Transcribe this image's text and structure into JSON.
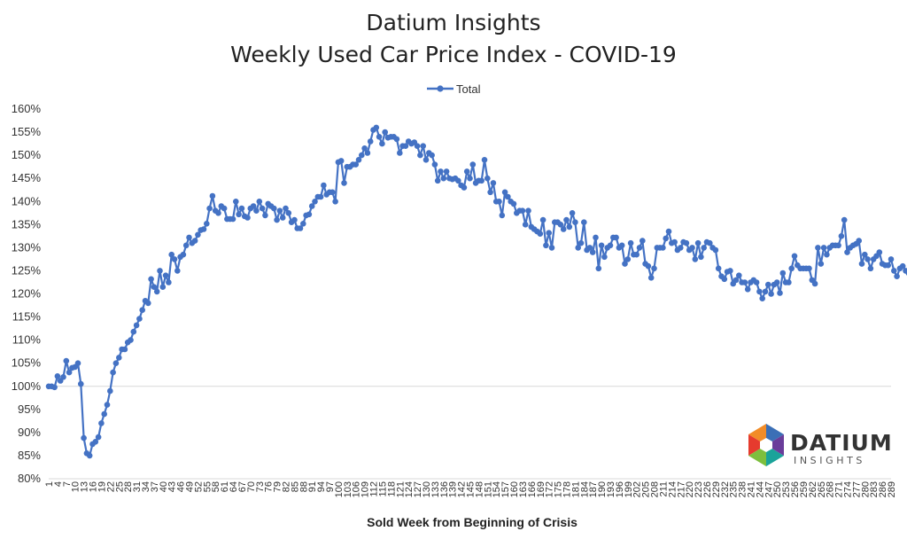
{
  "chart_data": {
    "type": "line",
    "title": [
      "Datium Insights",
      "Weekly Used Car Price Index - COVID-19"
    ],
    "xlabel": "Sold Week from Beginning of Crisis",
    "ylabel": "",
    "ylim": [
      0.8,
      1.6
    ],
    "y_ticks": [
      "80%",
      "85%",
      "90%",
      "95%",
      "100%",
      "105%",
      "110%",
      "115%",
      "120%",
      "125%",
      "130%",
      "135%",
      "140%",
      "145%",
      "150%",
      "155%",
      "160%"
    ],
    "x_range": [
      1,
      289
    ],
    "x_tick_labels": [
      "1",
      "4",
      "7",
      "10",
      "13",
      "16",
      "19",
      "22",
      "25",
      "28",
      "31",
      "34",
      "37",
      "40",
      "43",
      "46",
      "49",
      "52",
      "55",
      "58",
      "61",
      "64",
      "67",
      "70",
      "73",
      "76",
      "79",
      "82",
      "85",
      "88",
      "91",
      "94",
      "97",
      "100",
      "103",
      "106",
      "109",
      "112",
      "115",
      "118",
      "121",
      "124",
      "127",
      "130",
      "133",
      "136",
      "139",
      "142",
      "145",
      "148",
      "151",
      "154",
      "157",
      "160",
      "163",
      "166",
      "169",
      "172",
      "175",
      "178",
      "181",
      "184",
      "187",
      "190",
      "193",
      "196",
      "199",
      "202",
      "205",
      "208",
      "211",
      "214",
      "217",
      "220",
      "223",
      "226",
      "229",
      "232",
      "235",
      "238",
      "241",
      "244",
      "247",
      "250",
      "253",
      "256",
      "259",
      "262",
      "265",
      "268",
      "271",
      "274",
      "277",
      "280",
      "283",
      "286",
      "289"
    ],
    "reference_line": {
      "y": 1.0,
      "label": ""
    },
    "legend": {
      "position": "top-center"
    },
    "series": [
      {
        "name": "Total",
        "color": "#4472C4",
        "y": [
          1.0,
          1.0,
          0.998,
          1.022,
          1.012,
          1.02,
          1.055,
          1.03,
          1.04,
          1.042,
          1.05,
          1.005,
          0.888,
          0.855,
          0.85,
          0.875,
          0.88,
          0.89,
          0.92,
          0.94,
          0.96,
          0.99,
          1.03,
          1.05,
          1.062,
          1.08,
          1.08,
          1.095,
          1.1,
          1.118,
          1.132,
          1.146,
          1.165,
          1.185,
          1.18,
          1.232,
          1.215,
          1.205,
          1.25,
          1.215,
          1.24,
          1.225,
          1.285,
          1.275,
          1.25,
          1.28,
          1.285,
          1.305,
          1.322,
          1.31,
          1.315,
          1.328,
          1.338,
          1.34,
          1.352,
          1.385,
          1.412,
          1.38,
          1.375,
          1.39,
          1.385,
          1.362,
          1.362,
          1.362,
          1.4,
          1.372,
          1.385,
          1.368,
          1.365,
          1.385,
          1.39,
          1.38,
          1.4,
          1.385,
          1.37,
          1.395,
          1.39,
          1.385,
          1.36,
          1.38,
          1.365,
          1.385,
          1.375,
          1.355,
          1.36,
          1.342,
          1.342,
          1.352,
          1.37,
          1.372,
          1.39,
          1.4,
          1.41,
          1.41,
          1.435,
          1.415,
          1.42,
          1.42,
          1.4,
          1.485,
          1.488,
          1.44,
          1.475,
          1.475,
          1.48,
          1.48,
          1.49,
          1.5,
          1.515,
          1.505,
          1.53,
          1.555,
          1.56,
          1.54,
          1.525,
          1.55,
          1.538,
          1.54,
          1.54,
          1.535,
          1.505,
          1.52,
          1.52,
          1.53,
          1.525,
          1.528,
          1.52,
          1.5,
          1.52,
          1.49,
          1.505,
          1.5,
          1.48,
          1.445,
          1.465,
          1.45,
          1.465,
          1.45,
          1.448,
          1.45,
          1.445,
          1.435,
          1.43,
          1.465,
          1.45,
          1.48,
          1.44,
          1.445,
          1.445,
          1.49,
          1.45,
          1.42,
          1.44,
          1.4,
          1.4,
          1.37,
          1.42,
          1.41,
          1.4,
          1.395,
          1.375,
          1.38,
          1.38,
          1.35,
          1.38,
          1.345,
          1.34,
          1.335,
          1.33,
          1.36,
          1.305,
          1.332,
          1.3,
          1.355,
          1.355,
          1.35,
          1.34,
          1.36,
          1.345,
          1.375,
          1.355,
          1.3,
          1.31,
          1.355,
          1.295,
          1.3,
          1.29,
          1.322,
          1.255,
          1.305,
          1.28,
          1.3,
          1.305,
          1.322,
          1.322,
          1.3,
          1.305,
          1.265,
          1.275,
          1.31,
          1.285,
          1.285,
          1.3,
          1.315,
          1.265,
          1.26,
          1.235,
          1.255,
          1.3,
          1.3,
          1.3,
          1.32,
          1.335,
          1.31,
          1.312,
          1.295,
          1.3,
          1.312,
          1.31,
          1.295,
          1.3,
          1.275,
          1.31,
          1.28,
          1.3,
          1.312,
          1.31,
          1.3,
          1.295,
          1.255,
          1.238,
          1.232,
          1.248,
          1.25,
          1.222,
          1.23,
          1.24,
          1.225,
          1.225,
          1.21,
          1.225,
          1.23,
          1.225,
          1.205,
          1.19,
          1.205,
          1.22,
          1.2,
          1.22,
          1.225,
          1.202,
          1.245,
          1.225,
          1.225,
          1.255,
          1.282,
          1.262,
          1.255,
          1.255,
          1.255,
          1.255,
          1.23,
          1.222,
          1.3,
          1.265,
          1.3,
          1.285,
          1.3,
          1.305,
          1.305,
          1.305,
          1.325,
          1.36,
          1.29,
          1.3,
          1.305,
          1.308,
          1.315,
          1.265,
          1.285,
          1.275,
          1.255,
          1.275,
          1.282,
          1.29,
          1.265,
          1.262,
          1.262,
          1.275,
          1.25,
          1.238,
          1.255,
          1.26,
          1.25,
          1.245,
          1.248
        ]
      }
    ]
  },
  "logo": {
    "word": "DATIUM",
    "sub": "INSIGHTS"
  }
}
